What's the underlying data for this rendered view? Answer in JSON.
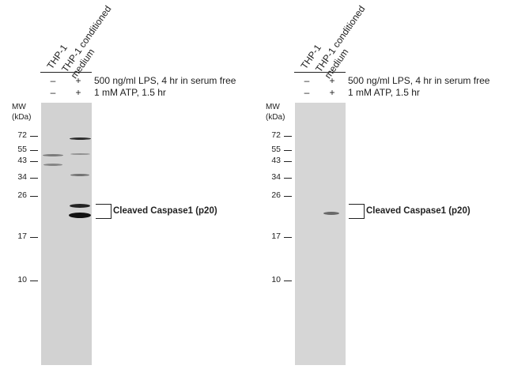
{
  "panels": [
    {
      "lanes": [
        "THP-1",
        "THP-1 conditioned\nmedium"
      ],
      "conditions": [
        {
          "label": "500 ng/ml LPS, 4 hr in serum free",
          "signs": [
            "–",
            "+"
          ]
        },
        {
          "label": "1 mM ATP,  1.5 hr",
          "signs": [
            "–",
            "+"
          ]
        }
      ],
      "mw_title": "MW",
      "mw_unit": "(kDa)",
      "markers": [
        "72",
        "55",
        "43",
        "34",
        "26",
        "17",
        "10"
      ],
      "target": "Cleaved Caspase1 (p20)"
    },
    {
      "lanes": [
        "THP-1",
        "THP-1 conditioned\nmedium"
      ],
      "conditions": [
        {
          "label": "500 ng/ml LPS, 4 hr in serum free",
          "signs": [
            "–",
            "+"
          ]
        },
        {
          "label": "1 mM ATP,  1.5 hr",
          "signs": [
            "–",
            "+"
          ]
        }
      ],
      "mw_title": "MW",
      "mw_unit": "(kDa)",
      "markers": [
        "72",
        "55",
        "43",
        "34",
        "26",
        "17",
        "10"
      ],
      "target": "Cleaved Caspase1 (p20)"
    }
  ]
}
